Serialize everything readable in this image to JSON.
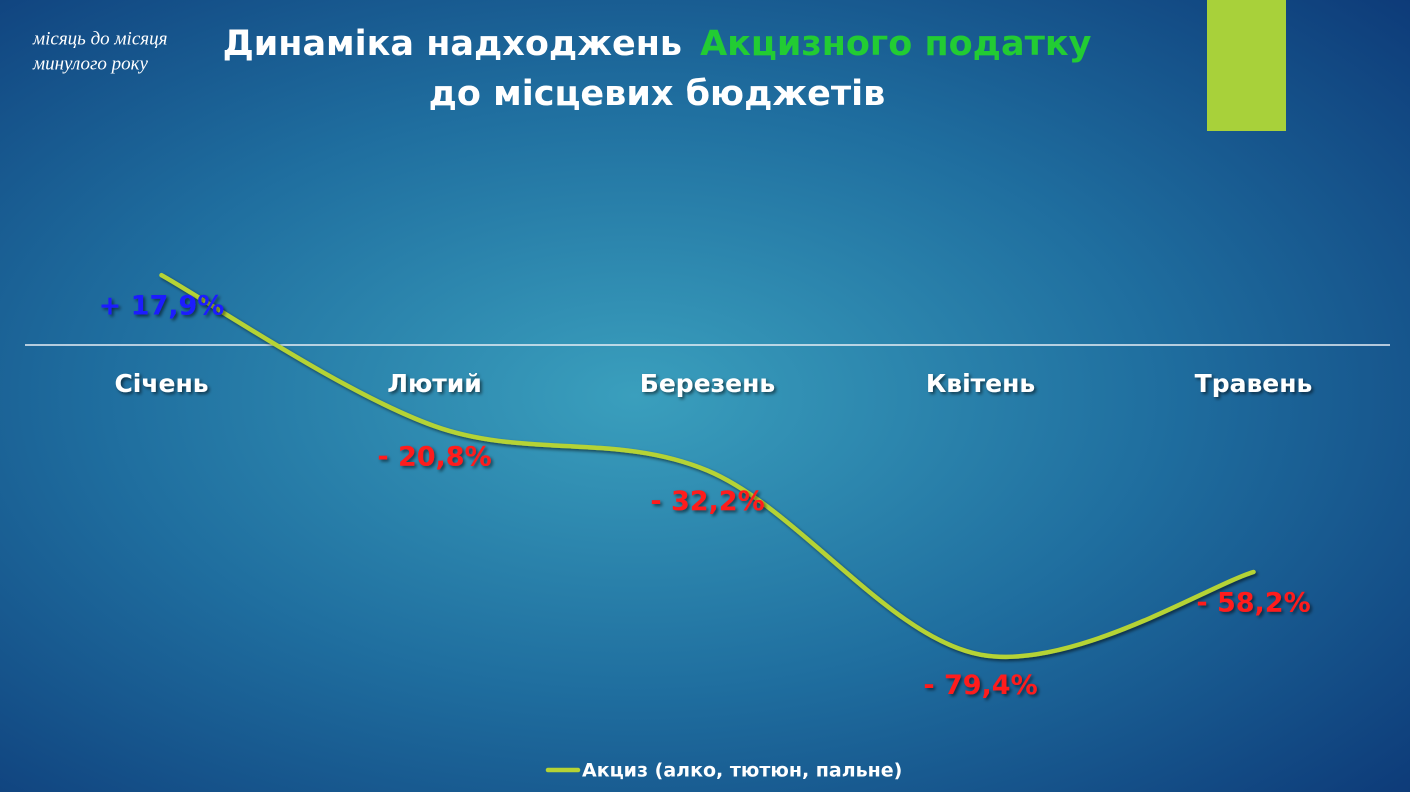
{
  "chart_data": {
    "type": "line",
    "title": "Динаміка надходжень",
    "title_highlight": "Акцизного податку",
    "title_line2": "до місцевих бюджетів",
    "annotation": [
      "місяць до місяця",
      "минулого року"
    ],
    "categories": [
      "Січень",
      "Лютий",
      "Березень",
      "Квітень",
      "Травень"
    ],
    "series": [
      {
        "name": "Акциз (алко, тютюн, пальне)",
        "color": "#b5d334",
        "values": [
          17.9,
          -20.8,
          -32.2,
          -79.4,
          -58.2
        ],
        "value_labels": [
          "+ 17,9%",
          "- 20,8%",
          "- 32,2%",
          "- 79,4%",
          "- 58,2%"
        ],
        "value_label_colors": [
          "#1a1aff",
          "#ff1a1a",
          "#ff1a1a",
          "#ff1a1a",
          "#ff1a1a"
        ]
      }
    ],
    "ylim": [
      -100,
      50
    ],
    "legend": "bottom"
  }
}
